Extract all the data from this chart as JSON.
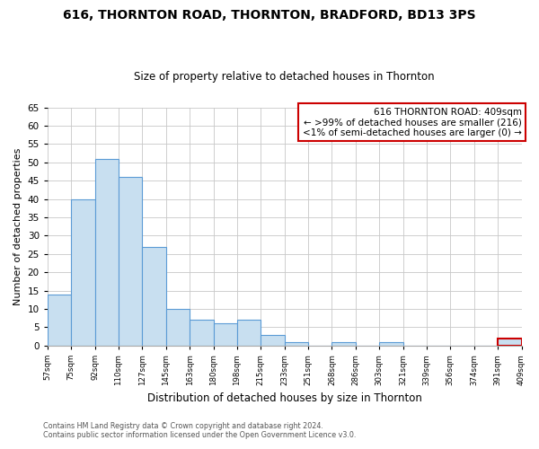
{
  "title": "616, THORNTON ROAD, THORNTON, BRADFORD, BD13 3PS",
  "subtitle": "Size of property relative to detached houses in Thornton",
  "xlabel": "Distribution of detached houses by size in Thornton",
  "ylabel": "Number of detached properties",
  "footer_lines": [
    "Contains HM Land Registry data © Crown copyright and database right 2024.",
    "Contains public sector information licensed under the Open Government Licence v3.0."
  ],
  "bin_labels": [
    "57sqm",
    "75sqm",
    "92sqm",
    "110sqm",
    "127sqm",
    "145sqm",
    "163sqm",
    "180sqm",
    "198sqm",
    "215sqm",
    "233sqm",
    "251sqm",
    "268sqm",
    "286sqm",
    "303sqm",
    "321sqm",
    "339sqm",
    "356sqm",
    "374sqm",
    "391sqm",
    "409sqm"
  ],
  "bar_values": [
    14,
    40,
    51,
    46,
    27,
    10,
    7,
    6,
    7,
    3,
    1,
    0,
    1,
    0,
    1,
    0,
    0,
    0,
    0,
    2
  ],
  "bar_color": "#c8dff0",
  "bar_edge_color": "#5b9bd5",
  "ylim": [
    0,
    65
  ],
  "yticks": [
    0,
    5,
    10,
    15,
    20,
    25,
    30,
    35,
    40,
    45,
    50,
    55,
    60,
    65
  ],
  "annotation_title": "616 THORNTON ROAD: 409sqm",
  "annotation_line1": "← >99% of detached houses are smaller (216)",
  "annotation_line2": "<1% of semi-detached houses are larger (0) →",
  "annotation_box_color": "#ffffff",
  "annotation_box_edge_color": "#cc0000",
  "highlight_bar_index": 19,
  "highlight_bar_edge_color": "#cc0000",
  "background_color": "#ffffff",
  "grid_color": "#c8c8c8"
}
